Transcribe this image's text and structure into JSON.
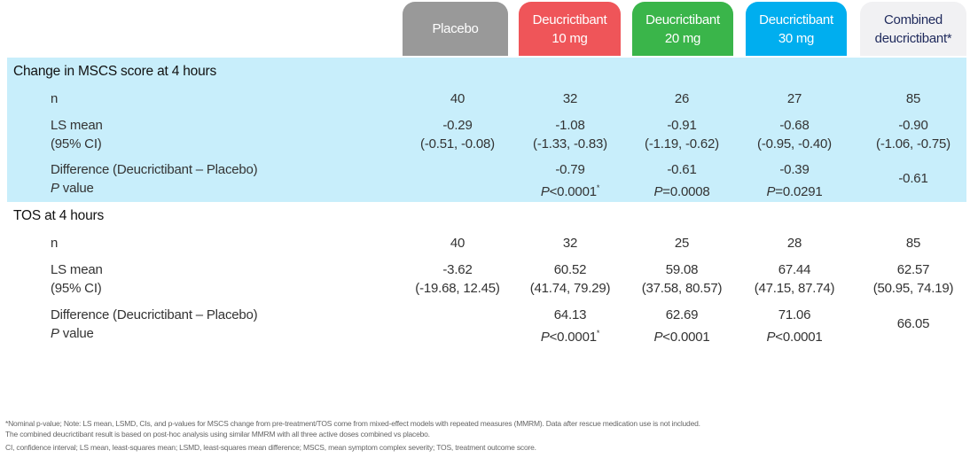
{
  "columns": [
    {
      "label1": "Placebo",
      "label2": "",
      "color": "#999999"
    },
    {
      "label1": "Deucrictibant",
      "label2": "10 mg",
      "color": "#ef5559"
    },
    {
      "label1": "Deucrictibant",
      "label2": "20 mg",
      "color": "#3ab54a"
    },
    {
      "label1": "Deucrictibant",
      "label2": "30 mg",
      "color": "#00aeef"
    },
    {
      "label1": "Combined",
      "label2": "deucrictibant*",
      "color": "#f1f1f3"
    }
  ],
  "sections": [
    {
      "title": "Change in MSCS score at 4 hours",
      "n_label": "n",
      "n": [
        "40",
        "32",
        "26",
        "27",
        "85"
      ],
      "ls_label": "LS mean",
      "ci_label": "(95% CI)",
      "ls": [
        "-0.29",
        "-1.08",
        "-0.91",
        "-0.68",
        "-0.90"
      ],
      "ci": [
        "(-0.51, -0.08)",
        "(-1.33, -0.83)",
        "(-1.19, -0.62)",
        "(-0.95, -0.40)",
        "(-1.06, -0.75)"
      ],
      "diff_label": "Difference (Deucrictibant – Placebo)",
      "p_label": "value",
      "p_italic": "P",
      "diff": [
        "",
        "-0.79",
        "-0.61",
        "-0.39",
        "-0.61"
      ],
      "p": [
        "",
        "<0.0001",
        "=0.0008",
        "=0.0291",
        ""
      ],
      "p_sup": [
        "",
        "*",
        "",
        "",
        ""
      ]
    },
    {
      "title": "TOS at 4 hours",
      "n_label": "n",
      "n": [
        "40",
        "32",
        "25",
        "28",
        "85"
      ],
      "ls_label": "LS mean",
      "ci_label": "(95% CI)",
      "ls": [
        "-3.62",
        "60.52",
        "59.08",
        "67.44",
        "62.57"
      ],
      "ci": [
        "(-19.68, 12.45)",
        "(41.74, 79.29)",
        "(37.58, 80.57)",
        "(47.15, 87.74)",
        "(50.95, 74.19)"
      ],
      "diff_label": "Difference (Deucrictibant – Placebo)",
      "p_label": "value",
      "p_italic": "P",
      "diff": [
        "",
        "64.13",
        "62.69",
        "71.06",
        "66.05"
      ],
      "p": [
        "",
        "<0.0001",
        "<0.0001",
        "<0.0001",
        ""
      ],
      "p_sup": [
        "",
        "*",
        "",
        "",
        ""
      ]
    }
  ],
  "footnotes": [
    "*Nominal p-value; Note: LS mean, LSMD, CIs, and p-values for MSCS change from pre-treatment/TOS come from mixed-effect models with repeated measures (MMRM). Data after rescue medication use is not included.",
    "The combined deucrictibant result is based on post-hoc analysis using similar MMRM with all three active doses combined vs placebo.",
    "CI, confidence interval; LS mean, least-squares mean; LSMD, least-squares mean difference; MSCS, mean symptom complex severity; TOS, treatment outcome score."
  ]
}
